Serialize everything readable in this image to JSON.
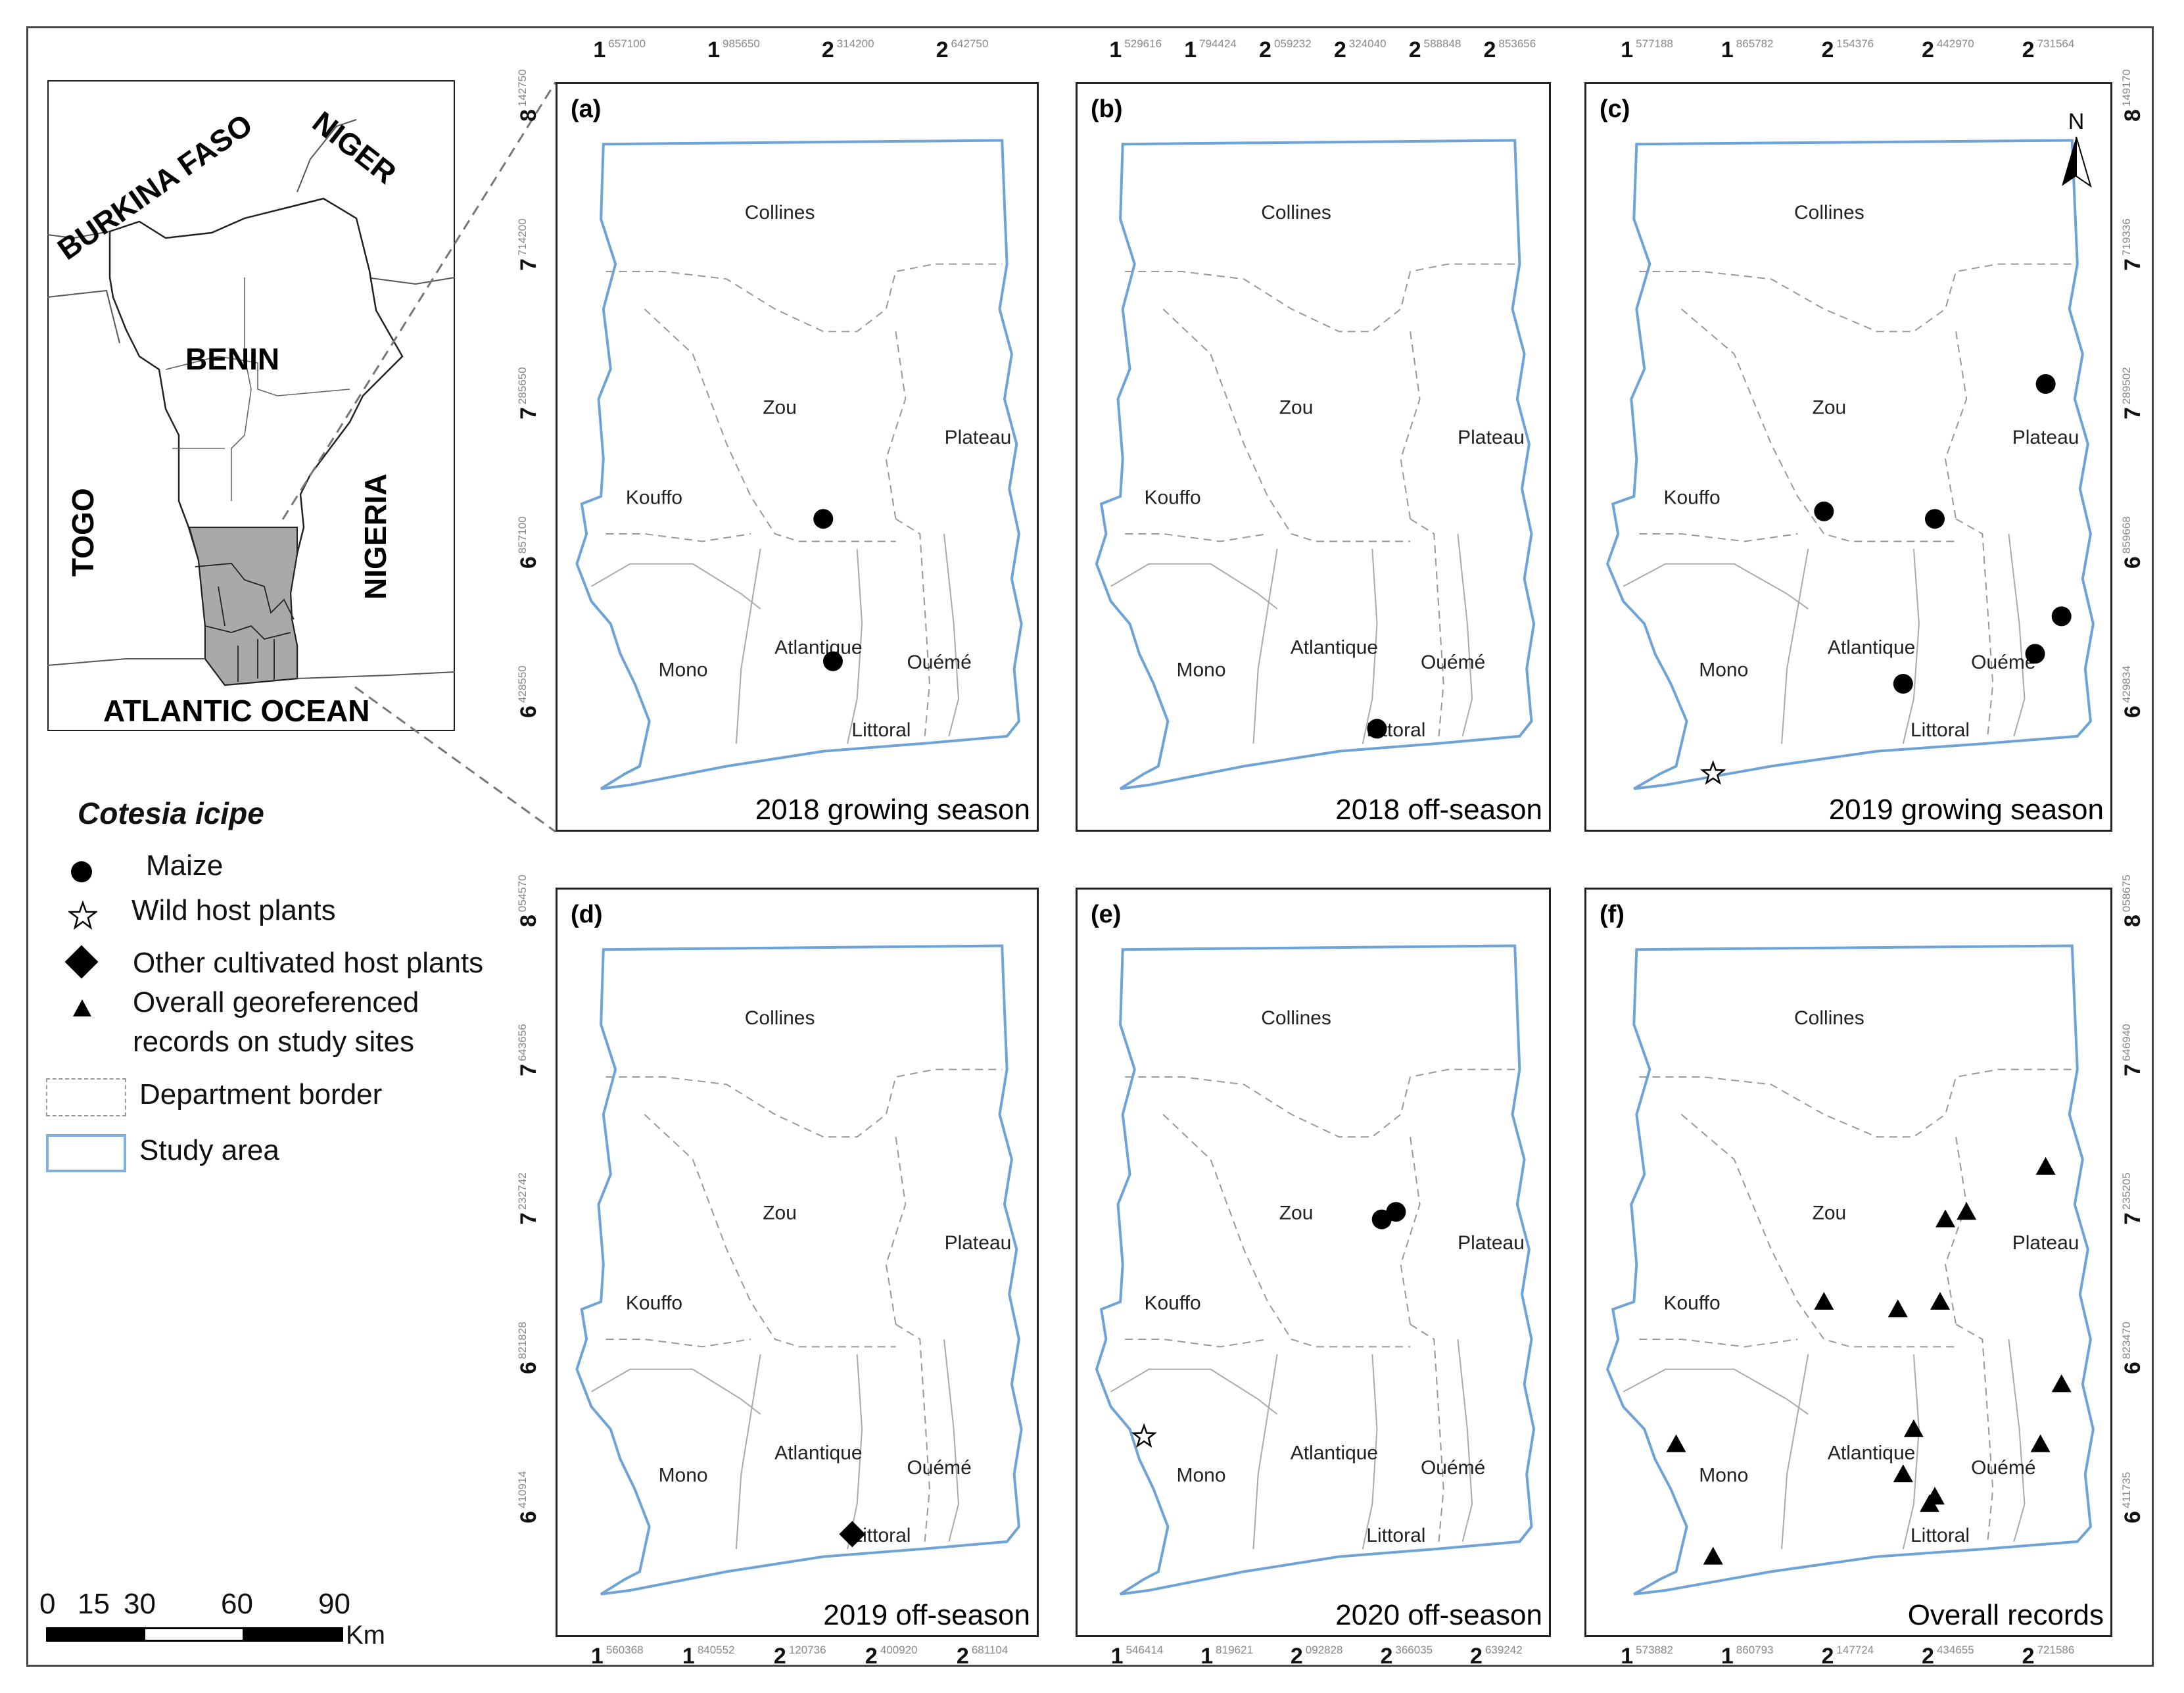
{
  "inset": {
    "country_labels": [
      "BURKINA FASO",
      "NIGER",
      "BENIN",
      "TOGO",
      "NIGERIA",
      "ATLANTIC OCEAN"
    ]
  },
  "legend": {
    "title": "Cotesia icipe",
    "items": [
      {
        "symbol": "circle",
        "label": "Maize"
      },
      {
        "symbol": "star",
        "label": "Wild host plants"
      },
      {
        "symbol": "diamond",
        "label": "Other cultivated host plants"
      },
      {
        "symbol": "triangle",
        "label_line1": "Overall georeferenced",
        "label_line2": "records on study sites"
      },
      {
        "symbol": "dashed-box",
        "label": "Department border"
      },
      {
        "symbol": "blue-box",
        "label": "Study area"
      }
    ]
  },
  "scale_bar": {
    "ticks": [
      "0",
      "15",
      "30",
      "60",
      "90"
    ],
    "unit": "Km"
  },
  "north_arrow": "N",
  "departments": [
    "Collines",
    "Zou",
    "Plateau",
    "Kouffo",
    "Atlantique",
    "Mono",
    "Ouémé",
    "Littoral"
  ],
  "panels": [
    {
      "id": "(a)",
      "caption": "2018 growing season",
      "top_ticks": [
        {
          "major": "1",
          "minor": "657100"
        },
        {
          "major": "1",
          "minor": "985650"
        },
        {
          "major": "2",
          "minor": "314200"
        },
        {
          "major": "2",
          "minor": "642750"
        }
      ],
      "left_ticks": [
        {
          "major": "8",
          "minor": "142750"
        },
        {
          "major": "7",
          "minor": "714200"
        },
        {
          "major": "7",
          "minor": "285650"
        },
        {
          "major": "6",
          "minor": "857100"
        },
        {
          "major": "6",
          "minor": "428550"
        }
      ],
      "markers": [
        {
          "type": "circle",
          "x": 0.55,
          "y": 0.58
        },
        {
          "type": "circle",
          "x": 0.57,
          "y": 0.77
        }
      ]
    },
    {
      "id": "(b)",
      "caption": "2018 off-season",
      "top_ticks": [
        {
          "major": "1",
          "minor": "529616"
        },
        {
          "major": "1",
          "minor": "794424"
        },
        {
          "major": "2",
          "minor": "059232"
        },
        {
          "major": "2",
          "minor": "324040"
        },
        {
          "major": "2",
          "minor": "588848"
        },
        {
          "major": "2",
          "minor": "853656"
        }
      ],
      "left_ticks": [],
      "markers": [
        {
          "type": "circle",
          "x": 0.63,
          "y": 0.86
        }
      ]
    },
    {
      "id": "(c)",
      "caption": "2019 growing season",
      "top_ticks": [
        {
          "major": "1",
          "minor": "577188"
        },
        {
          "major": "1",
          "minor": "865782"
        },
        {
          "major": "2",
          "minor": "154376"
        },
        {
          "major": "2",
          "minor": "442970"
        },
        {
          "major": "2",
          "minor": "731564"
        }
      ],
      "right_ticks": [
        {
          "major": "8",
          "minor": "149170"
        },
        {
          "major": "7",
          "minor": "719336"
        },
        {
          "major": "7",
          "minor": "289502"
        },
        {
          "major": "6",
          "minor": "859668"
        },
        {
          "major": "6",
          "minor": "429834"
        }
      ],
      "markers": [
        {
          "type": "circle",
          "x": 0.87,
          "y": 0.4
        },
        {
          "type": "circle",
          "x": 0.45,
          "y": 0.57
        },
        {
          "type": "circle",
          "x": 0.66,
          "y": 0.58
        },
        {
          "type": "circle",
          "x": 0.9,
          "y": 0.71
        },
        {
          "type": "circle",
          "x": 0.85,
          "y": 0.76
        },
        {
          "type": "circle",
          "x": 0.6,
          "y": 0.8
        },
        {
          "type": "star",
          "x": 0.24,
          "y": 0.92
        }
      ]
    },
    {
      "id": "(d)",
      "caption": "2019 off-season",
      "left_ticks": [
        {
          "major": "8",
          "minor": "054570"
        },
        {
          "major": "7",
          "minor": "643656"
        },
        {
          "major": "7",
          "minor": "232742"
        },
        {
          "major": "6",
          "minor": "821828"
        },
        {
          "major": "6",
          "minor": "410914"
        }
      ],
      "bottom_ticks": [
        {
          "major": "1",
          "minor": "560368"
        },
        {
          "major": "1",
          "minor": "840552"
        },
        {
          "major": "2",
          "minor": "120736"
        },
        {
          "major": "2",
          "minor": "400920"
        },
        {
          "major": "2",
          "minor": "681104"
        }
      ],
      "markers": [
        {
          "type": "diamond",
          "x": 0.61,
          "y": 0.86
        }
      ]
    },
    {
      "id": "(e)",
      "caption": "2020 off-season",
      "bottom_ticks": [
        {
          "major": "1",
          "minor": "546414"
        },
        {
          "major": "1",
          "minor": "819621"
        },
        {
          "major": "2",
          "minor": "092828"
        },
        {
          "major": "2",
          "minor": "366035"
        },
        {
          "major": "2",
          "minor": "639242"
        }
      ],
      "markers": [
        {
          "type": "circle",
          "x": 0.64,
          "y": 0.44
        },
        {
          "type": "circle",
          "x": 0.67,
          "y": 0.43
        },
        {
          "type": "star",
          "x": 0.14,
          "y": 0.73
        }
      ]
    },
    {
      "id": "(f)",
      "caption": "Overall records",
      "right_ticks": [
        {
          "major": "8",
          "minor": "058675"
        },
        {
          "major": "7",
          "minor": "646940"
        },
        {
          "major": "7",
          "minor": "235205"
        },
        {
          "major": "6",
          "minor": "823470"
        },
        {
          "major": "6",
          "minor": "411735"
        }
      ],
      "bottom_ticks": [
        {
          "major": "1",
          "minor": "573882"
        },
        {
          "major": "1",
          "minor": "860793"
        },
        {
          "major": "2",
          "minor": "147724"
        },
        {
          "major": "2",
          "minor": "434655"
        },
        {
          "major": "2",
          "minor": "721586"
        }
      ],
      "markers": [
        {
          "type": "triangle",
          "x": 0.87,
          "y": 0.37
        },
        {
          "type": "triangle",
          "x": 0.68,
          "y": 0.44
        },
        {
          "type": "triangle",
          "x": 0.72,
          "y": 0.43
        },
        {
          "type": "triangle",
          "x": 0.45,
          "y": 0.55
        },
        {
          "type": "triangle",
          "x": 0.59,
          "y": 0.56
        },
        {
          "type": "triangle",
          "x": 0.67,
          "y": 0.55
        },
        {
          "type": "triangle",
          "x": 0.9,
          "y": 0.66
        },
        {
          "type": "triangle",
          "x": 0.62,
          "y": 0.72
        },
        {
          "type": "triangle",
          "x": 0.86,
          "y": 0.74
        },
        {
          "type": "triangle",
          "x": 0.6,
          "y": 0.78
        },
        {
          "type": "triangle",
          "x": 0.66,
          "y": 0.81
        },
        {
          "type": "triangle",
          "x": 0.65,
          "y": 0.82
        },
        {
          "type": "triangle",
          "x": 0.17,
          "y": 0.74
        },
        {
          "type": "triangle",
          "x": 0.24,
          "y": 0.89
        }
      ]
    }
  ]
}
